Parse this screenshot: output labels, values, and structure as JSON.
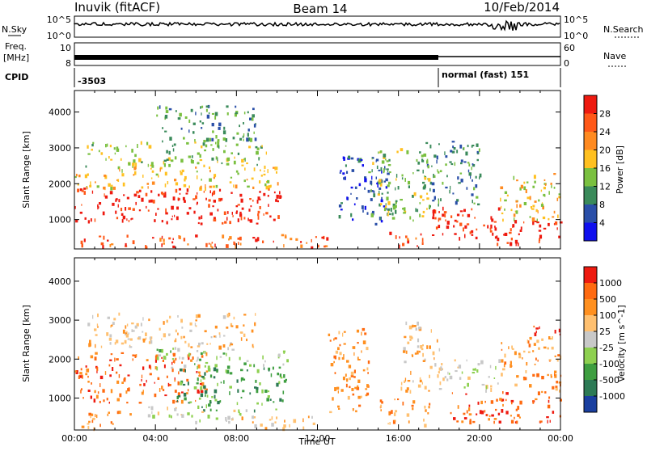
{
  "header": {
    "station": "Inuvik (fitACF)",
    "beam": "Beam 14",
    "date": "10/Feb/2014"
  },
  "strip_labels": {
    "nsky": "N.Sky",
    "nsky_ticks": [
      "10^5",
      "10^0"
    ],
    "nsearch": "N.Search",
    "nsearch_ticks": [
      "10^5",
      "10^0"
    ],
    "freq": "Freq.",
    "freq_unit": "[MHz]",
    "freq_ticks": [
      "10",
      "8"
    ],
    "nave": "Nave",
    "nave_ticks": [
      "60",
      "0"
    ],
    "cpid": "CPID",
    "cpid_value_1": "-3503",
    "cpid_value_2": "normal (fast) 151"
  },
  "chart_data": [
    {
      "type": "heatmap",
      "panel": "power",
      "ylabel": "Slant Range [km]",
      "xlabel": "",
      "x_ticks": [
        "00:00",
        "04:00",
        "08:00",
        "12:00",
        "16:00",
        "20:00",
        "00:00"
      ],
      "x_range_hours": [
        0,
        24
      ],
      "y_ticks": [
        1000,
        2000,
        3000,
        4000
      ],
      "ylim": [
        180,
        4600
      ],
      "colorbar": {
        "label": "Power [dB]",
        "ticks": [
          "4",
          "8",
          "12",
          "16",
          "20",
          "24",
          "28"
        ],
        "colors": [
          "#1010ee",
          "#2a4fa8",
          "#3a8a5a",
          "#7ac040",
          "#ffc020",
          "#ff8a20",
          "#ff5818",
          "#ee1a10"
        ]
      },
      "regions": [
        {
          "t0": 0.0,
          "t1": 10.2,
          "r0": 900,
          "r1": 1900,
          "level": 7
        },
        {
          "t0": 0.0,
          "t1": 10.2,
          "r0": 1900,
          "r1": 2500,
          "level": 4
        },
        {
          "t0": 0.5,
          "t1": 9.5,
          "r0": 2500,
          "r1": 3200,
          "level": 3
        },
        {
          "t0": 0.3,
          "t1": 12.5,
          "r0": 250,
          "r1": 600,
          "level": 6
        },
        {
          "t0": 4.0,
          "t1": 9.0,
          "r0": 3200,
          "r1": 4200,
          "level": 2
        },
        {
          "t0": 13.0,
          "t1": 15.5,
          "r0": 900,
          "r1": 2800,
          "level": 1
        },
        {
          "t0": 14.5,
          "t1": 17.5,
          "r0": 1000,
          "r1": 3000,
          "level": 3
        },
        {
          "t0": 15.5,
          "t1": 17.2,
          "r0": 250,
          "r1": 700,
          "level": 6
        },
        {
          "t0": 17.5,
          "t1": 21.0,
          "r0": 500,
          "r1": 1400,
          "level": 7
        },
        {
          "t0": 20.5,
          "t1": 24.0,
          "r0": 350,
          "r1": 1000,
          "level": 7
        },
        {
          "t0": 21.0,
          "t1": 24.0,
          "r0": 1000,
          "r1": 2300,
          "level": 4
        },
        {
          "t0": 17.0,
          "t1": 20.0,
          "r0": 1400,
          "r1": 3200,
          "level": 2
        }
      ]
    },
    {
      "type": "heatmap",
      "panel": "velocity",
      "ylabel": "Slant Range [km]",
      "xlabel": "Time UT",
      "x_ticks": [
        "00:00",
        "04:00",
        "08:00",
        "12:00",
        "16:00",
        "20:00",
        "00:00"
      ],
      "x_range_hours": [
        0,
        24
      ],
      "y_ticks": [
        1000,
        2000,
        3000,
        4000
      ],
      "ylim": [
        180,
        4600
      ],
      "colorbar": {
        "label": "Velocity [m s^-1]",
        "ticks": [
          "1000",
          "500",
          "100",
          "25",
          "-25",
          "-100",
          "-500",
          "-1000"
        ],
        "colors": [
          "#1a3fa0",
          "#2d7a55",
          "#3e9e40",
          "#8ed050",
          "#c8c8c8",
          "#ffc070",
          "#ff9020",
          "#ff6a10",
          "#ee1a10"
        ]
      },
      "regions": [
        {
          "t0": 0.0,
          "t1": 6.5,
          "r0": 900,
          "r1": 2200,
          "level": 7
        },
        {
          "t0": 5.0,
          "t1": 10.5,
          "r0": 700,
          "r1": 1800,
          "level": 2
        },
        {
          "t0": 4.0,
          "t1": 10.5,
          "r0": 1800,
          "r1": 2300,
          "level": 3
        },
        {
          "t0": 0.5,
          "t1": 9.0,
          "r0": 2300,
          "r1": 3200,
          "level": 5
        },
        {
          "t0": 3.5,
          "t1": 8.5,
          "r0": 400,
          "r1": 800,
          "level": 4
        },
        {
          "t0": 0.3,
          "t1": 3.0,
          "r0": 250,
          "r1": 700,
          "level": 6
        },
        {
          "t0": 8.0,
          "t1": 12.0,
          "r0": 250,
          "r1": 600,
          "level": 5
        },
        {
          "t0": 12.5,
          "t1": 14.5,
          "r0": 600,
          "r1": 2800,
          "level": 6
        },
        {
          "t0": 15.0,
          "t1": 17.5,
          "r0": 300,
          "r1": 1000,
          "level": 6
        },
        {
          "t0": 16.0,
          "t1": 18.0,
          "r0": 1200,
          "r1": 3000,
          "level": 5
        },
        {
          "t0": 18.0,
          "t1": 21.0,
          "r0": 1200,
          "r1": 2000,
          "level": 4
        },
        {
          "t0": 18.5,
          "t1": 24.0,
          "r0": 400,
          "r1": 1200,
          "level": 7
        },
        {
          "t0": 21.0,
          "t1": 24.0,
          "r0": 1200,
          "r1": 2600,
          "level": 6
        },
        {
          "t0": 22.5,
          "t1": 24.0,
          "r0": 2600,
          "r1": 2900,
          "level": 8
        }
      ]
    }
  ]
}
